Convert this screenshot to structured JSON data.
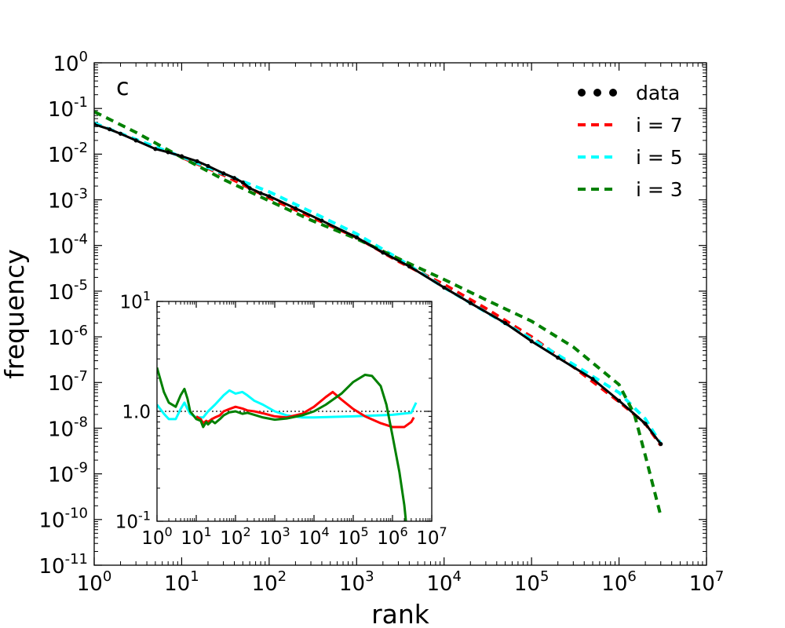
{
  "chart_data": {
    "type": "line",
    "panel_label": "c",
    "xlabel": "rank",
    "ylabel": "frequency",
    "x_scale": "log",
    "y_scale": "log",
    "xlim": [
      1,
      10000000
    ],
    "ylim": [
      1e-11,
      1
    ],
    "x_ticks": [
      {
        "base": "10",
        "exp": "0"
      },
      {
        "base": "10",
        "exp": "1"
      },
      {
        "base": "10",
        "exp": "2"
      },
      {
        "base": "10",
        "exp": "3"
      },
      {
        "base": "10",
        "exp": "4"
      },
      {
        "base": "10",
        "exp": "5"
      },
      {
        "base": "10",
        "exp": "6"
      },
      {
        "base": "10",
        "exp": "7"
      }
    ],
    "y_ticks": [
      {
        "base": "10",
        "exp": "0"
      },
      {
        "base": "10",
        "exp": "-1"
      },
      {
        "base": "10",
        "exp": "-2"
      },
      {
        "base": "10",
        "exp": "-3"
      },
      {
        "base": "10",
        "exp": "-4"
      },
      {
        "base": "10",
        "exp": "-5"
      },
      {
        "base": "10",
        "exp": "-6"
      },
      {
        "base": "10",
        "exp": "-7"
      },
      {
        "base": "10",
        "exp": "-8"
      },
      {
        "base": "10",
        "exp": "-9"
      },
      {
        "base": "10",
        "exp": "-10"
      },
      {
        "base": "10",
        "exp": "-11"
      }
    ],
    "legend_position": "top-right",
    "series": [
      {
        "name": "data",
        "style": "dotted",
        "color": "#000000",
        "points": [
          [
            1,
            0.045
          ],
          [
            1.5,
            0.035
          ],
          [
            2,
            0.028
          ],
          [
            3,
            0.02
          ],
          [
            5,
            0.013
          ],
          [
            7,
            0.011
          ],
          [
            10,
            0.009
          ],
          [
            15,
            0.007
          ],
          [
            20,
            0.0055
          ],
          [
            30,
            0.0038
          ],
          [
            40,
            0.003
          ],
          [
            50,
            0.0024
          ],
          [
            60,
            0.0018
          ],
          [
            80,
            0.0014
          ],
          [
            100,
            0.0012
          ],
          [
            200,
            0.00065
          ],
          [
            400,
            0.00035
          ],
          [
            1000,
            0.00015
          ],
          [
            2000,
            7e-05
          ],
          [
            4000,
            3.5e-05
          ],
          [
            10000,
            1.2e-05
          ],
          [
            20000,
            5.5e-06
          ],
          [
            50000,
            2e-06
          ],
          [
            100000,
            8e-07
          ],
          [
            200000,
            3.5e-07
          ],
          [
            500000,
            1.2e-07
          ],
          [
            1000000,
            4e-08
          ],
          [
            2000000,
            1.25e-08
          ],
          [
            3000000,
            4.5e-09
          ]
        ]
      },
      {
        "name": "i = 7",
        "style": "dashed",
        "color": "#ff0000",
        "points": [
          [
            10,
            0.0085
          ],
          [
            30,
            0.0035
          ],
          [
            100,
            0.0011
          ],
          [
            300,
            0.00042
          ],
          [
            1000,
            0.00015
          ],
          [
            3000,
            4.5e-05
          ],
          [
            10000,
            1.4e-05
          ],
          [
            30000,
            4.2e-06
          ],
          [
            100000,
            1e-06
          ],
          [
            300000,
            2.2e-07
          ],
          [
            1000000,
            3.8e-08
          ],
          [
            2000000,
            1.25e-08
          ],
          [
            3000000,
            4.2e-09
          ]
        ]
      },
      {
        "name": "i = 5",
        "style": "dashed",
        "color": "#00ffff",
        "points": [
          [
            1,
            0.048
          ],
          [
            3,
            0.021
          ],
          [
            10,
            0.0088
          ],
          [
            30,
            0.0037
          ],
          [
            100,
            0.0015
          ],
          [
            300,
            0.00055
          ],
          [
            1000,
            0.00018
          ],
          [
            3000,
            5.2e-05
          ],
          [
            10000,
            1.2e-05
          ],
          [
            30000,
            3.5e-06
          ],
          [
            100000,
            9e-07
          ],
          [
            300000,
            2.5e-07
          ],
          [
            1000000,
            6e-08
          ],
          [
            2000000,
            1.6e-08
          ],
          [
            3000000,
            4.6e-09
          ]
        ]
      },
      {
        "name": "i = 3",
        "style": "dashed",
        "color": "#008000",
        "points": [
          [
            1,
            0.085
          ],
          [
            3,
            0.03
          ],
          [
            10,
            0.0085
          ],
          [
            30,
            0.0028
          ],
          [
            100,
            0.00095
          ],
          [
            300,
            0.00036
          ],
          [
            1000,
            0.00014
          ],
          [
            3000,
            5.2e-05
          ],
          [
            10000,
            1.8e-05
          ],
          [
            30000,
            6.5e-06
          ],
          [
            100000,
            2.2e-06
          ],
          [
            300000,
            6e-07
          ],
          [
            1000000,
            9e-08
          ],
          [
            1500000,
            2e-08
          ],
          [
            2000000,
            2.5e-09
          ],
          [
            3000000,
            1.2e-10
          ]
        ]
      }
    ],
    "inset": {
      "x_scale": "log",
      "y_scale": "log",
      "xlim": [
        1,
        10000000
      ],
      "ylim": [
        0.1,
        10
      ],
      "x_ticks": [
        {
          "base": "10",
          "exp": "0"
        },
        {
          "base": "10",
          "exp": "1"
        },
        {
          "base": "10",
          "exp": "2"
        },
        {
          "base": "10",
          "exp": "3"
        },
        {
          "base": "10",
          "exp": "4"
        },
        {
          "base": "10",
          "exp": "5"
        },
        {
          "base": "10",
          "exp": "6"
        },
        {
          "base": "10",
          "exp": "7"
        }
      ],
      "y_ticks": [
        {
          "base": "10",
          "exp": "1",
          "value": 10
        },
        {
          "base": "10",
          "exp": "0",
          "value": 1,
          "text": "1.0"
        },
        {
          "base": "10",
          "exp": "-1",
          "value": 0.1
        }
      ],
      "reference_line": 1.0,
      "series": [
        {
          "name": "i = 7",
          "color": "#ff0000",
          "points": [
            [
              10,
              0.9
            ],
            [
              13,
              0.85
            ],
            [
              15,
              0.78
            ],
            [
              18,
              0.82
            ],
            [
              20,
              0.8
            ],
            [
              25,
              0.85
            ],
            [
              30,
              0.88
            ],
            [
              40,
              0.92
            ],
            [
              50,
              1.0
            ],
            [
              70,
              1.05
            ],
            [
              100,
              1.1
            ],
            [
              150,
              1.06
            ],
            [
              200,
              1.02
            ],
            [
              300,
              1.0
            ],
            [
              500,
              0.96
            ],
            [
              1000,
              0.9
            ],
            [
              2000,
              0.88
            ],
            [
              5000,
              0.95
            ],
            [
              10000,
              1.1
            ],
            [
              20000,
              1.35
            ],
            [
              30000,
              1.5
            ],
            [
              50000,
              1.28
            ],
            [
              100000,
              1.05
            ],
            [
              200000,
              0.9
            ],
            [
              500000,
              0.78
            ],
            [
              1000000,
              0.72
            ],
            [
              2000000,
              0.72
            ],
            [
              3000000,
              0.8
            ],
            [
              3500000,
              0.88
            ]
          ]
        },
        {
          "name": "i = 5",
          "color": "#00ffff",
          "points": [
            [
              1,
              1.15
            ],
            [
              1.5,
              0.95
            ],
            [
              2,
              0.85
            ],
            [
              3,
              0.85
            ],
            [
              4,
              1.05
            ],
            [
              5,
              1.2
            ],
            [
              6,
              1.05
            ],
            [
              7,
              0.95
            ],
            [
              10,
              0.88
            ],
            [
              15,
              0.88
            ],
            [
              20,
              1.0
            ],
            [
              30,
              1.15
            ],
            [
              50,
              1.4
            ],
            [
              70,
              1.55
            ],
            [
              100,
              1.45
            ],
            [
              150,
              1.5
            ],
            [
              200,
              1.4
            ],
            [
              300,
              1.25
            ],
            [
              500,
              1.15
            ],
            [
              1000,
              1.0
            ],
            [
              2000,
              0.92
            ],
            [
              5000,
              0.88
            ],
            [
              10000,
              0.88
            ],
            [
              100000,
              0.9
            ],
            [
              1000000,
              0.93
            ],
            [
              3000000,
              0.97
            ],
            [
              4000000,
              1.2
            ]
          ]
        },
        {
          "name": "i = 3",
          "color": "#008000",
          "points": [
            [
              1,
              2.5
            ],
            [
              1.5,
              1.5
            ],
            [
              2,
              1.2
            ],
            [
              3,
              1.1
            ],
            [
              4,
              1.4
            ],
            [
              5,
              1.6
            ],
            [
              6,
              1.3
            ],
            [
              7,
              1.0
            ],
            [
              10,
              0.85
            ],
            [
              13,
              0.82
            ],
            [
              15,
              0.72
            ],
            [
              18,
              0.8
            ],
            [
              20,
              0.76
            ],
            [
              25,
              0.82
            ],
            [
              30,
              0.78
            ],
            [
              40,
              0.85
            ],
            [
              50,
              0.92
            ],
            [
              70,
              0.98
            ],
            [
              100,
              1.0
            ],
            [
              150,
              0.95
            ],
            [
              200,
              0.97
            ],
            [
              300,
              0.93
            ],
            [
              500,
              0.88
            ],
            [
              1000,
              0.84
            ],
            [
              2000,
              0.86
            ],
            [
              5000,
              0.92
            ],
            [
              10000,
              1.0
            ],
            [
              20000,
              1.15
            ],
            [
              50000,
              1.45
            ],
            [
              100000,
              1.85
            ],
            [
              200000,
              2.15
            ],
            [
              300000,
              2.1
            ],
            [
              500000,
              1.7
            ],
            [
              700000,
              1.15
            ],
            [
              1000000,
              0.6
            ],
            [
              1500000,
              0.28
            ],
            [
              2000000,
              0.14
            ],
            [
              2200000,
              0.1
            ]
          ]
        }
      ]
    }
  }
}
